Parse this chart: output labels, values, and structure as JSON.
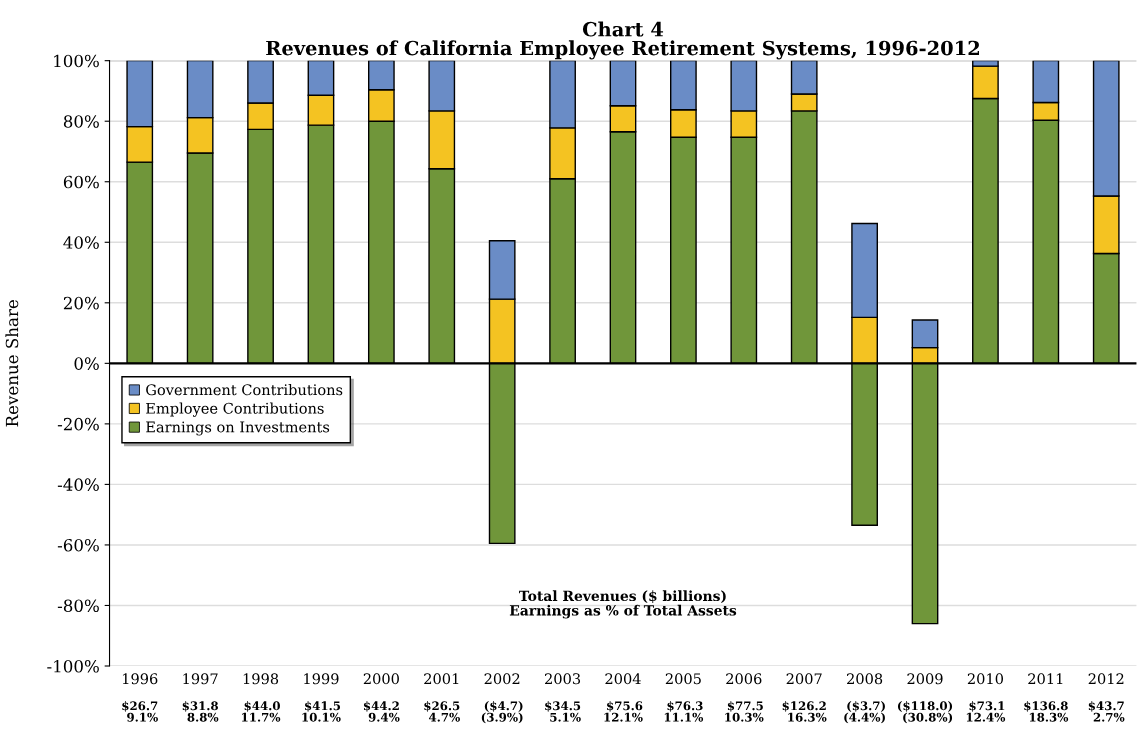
{
  "chart_data": {
    "type": "bar",
    "stacked": true,
    "title": "Chart 4\nRevenues of California Employee Retirement Systems, 1996-2012",
    "ylabel": "Revenue Share",
    "categories": [
      "1996",
      "1997",
      "1998",
      "1999",
      "2000",
      "2001",
      "2002",
      "2003",
      "2004",
      "2005",
      "2006",
      "2007",
      "2008",
      "2009",
      "2010",
      "2011",
      "2012"
    ],
    "series": [
      {
        "name": "Earnings on Investments",
        "color": "#70963a",
        "values": [
          66.5,
          69.5,
          77.3,
          78.7,
          80,
          64.3,
          -59.5,
          61,
          76.5,
          74.7,
          74.7,
          83.4,
          -53.5,
          -86,
          87.5,
          80.3,
          36.3
        ]
      },
      {
        "name": "Employee Contributions",
        "color": "#f4c322",
        "values": [
          11.7,
          11.7,
          8.7,
          9.9,
          10.4,
          19.1,
          21.2,
          16.8,
          8.6,
          9.1,
          8.7,
          5.6,
          15.2,
          5.2,
          10.7,
          5.9,
          19
        ]
      },
      {
        "name": "Government Contributions",
        "color": "#6a8cc6",
        "values": [
          21.8,
          18.8,
          14,
          11.4,
          9.6,
          16.6,
          19.3,
          22.2,
          14.9,
          16.2,
          16.6,
          11,
          31,
          9.1,
          1.8,
          13.8,
          44.7
        ]
      }
    ],
    "ylim": [
      -100,
      100
    ],
    "yticks": [
      {
        "value": -100,
        "label": "-100%"
      },
      {
        "value": -80,
        "label": "-80%"
      },
      {
        "value": -60,
        "label": "-60%"
      },
      {
        "value": -40,
        "label": "-40%"
      },
      {
        "value": -20,
        "label": "-20%"
      },
      {
        "value": 0,
        "label": "0%"
      },
      {
        "value": 20,
        "label": "20%"
      },
      {
        "value": 40,
        "label": "40%"
      },
      {
        "value": 60,
        "label": "60%"
      },
      {
        "value": 80,
        "label": "80%"
      },
      {
        "value": 100,
        "label": "100%"
      }
    ],
    "grid": "y",
    "legend": "left",
    "annotations": [
      "Total Revenues ($ billions)\nEarnings as % of Total Assets",
      "$26.7\n9.1%",
      "$31.8\n8.8%",
      "$44.0\n11.7%",
      "$41.5\n10.1%",
      "$44.2\n9.4%",
      "$26.5\n4.7%",
      "($4.7)\n(3.9%)",
      "$34.5\n5.1%",
      "$75.6\n12.1%",
      "$76.3\n11.1%",
      "$77.5\n10.3%",
      "$126.2\n16.3%",
      "($3.7)\n(4.4%)",
      "($118.0)\n(30.8%)",
      "$73.1\n12.4%",
      "$136.8\n18.3%",
      "$43.7\n2.7%"
    ]
  }
}
